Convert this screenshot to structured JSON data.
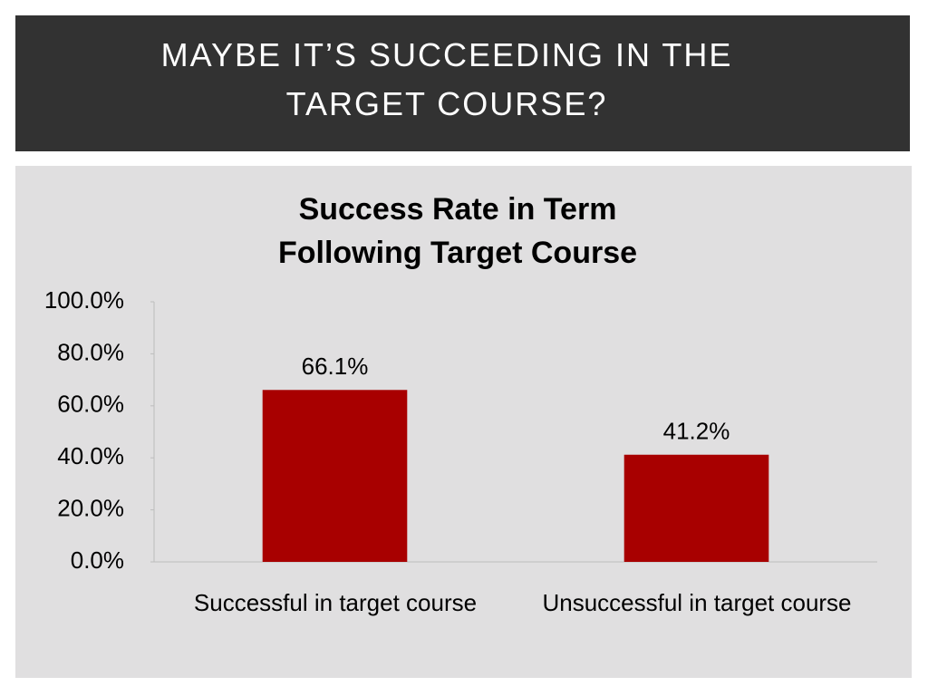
{
  "header": {
    "title": "MAYBE IT’S SUCCEEDING IN THE TARGET COURSE?"
  },
  "chart_data": {
    "type": "bar",
    "title": "Success Rate in Term Following Target Course",
    "categories": [
      "Successful in target course",
      "Unsuccessful in target course"
    ],
    "values": [
      66.1,
      41.2
    ],
    "value_labels": [
      "66.1%",
      "41.2%"
    ],
    "color": "#a80000",
    "ylim": [
      0,
      100
    ],
    "yticks": [
      {
        "value": 0,
        "label": "0.0%"
      },
      {
        "value": 20,
        "label": "20.0%"
      },
      {
        "value": 40,
        "label": "40.0%"
      },
      {
        "value": 60,
        "label": "60.0%"
      },
      {
        "value": 80,
        "label": "80.0%"
      },
      {
        "value": 100,
        "label": "100.0%"
      }
    ],
    "grid": false
  }
}
